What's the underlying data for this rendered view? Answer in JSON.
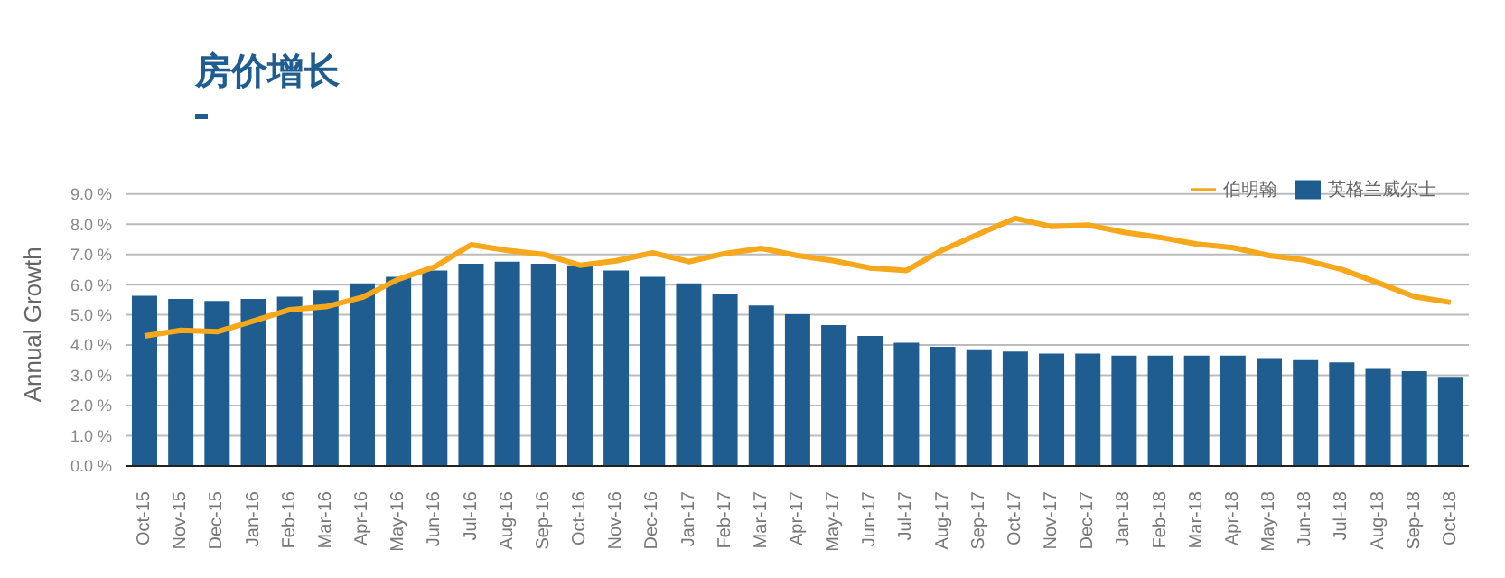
{
  "chart_data": {
    "type": "bar",
    "title": "房价增长",
    "ylabel": "Annual Growth",
    "categories": [
      "Oct-15",
      "Nov-15",
      "Dec-15",
      "Jan-16",
      "Feb-16",
      "Mar-16",
      "Apr-16",
      "May-16",
      "Jun-16",
      "Jul-16",
      "Aug-16",
      "Sep-16",
      "Oct-16",
      "Nov-16",
      "Dec-16",
      "Jan-17",
      "Feb-17",
      "Mar-17",
      "Apr-17",
      "May-17",
      "Jun-17",
      "Jul-17",
      "Aug-17",
      "Sep-17",
      "Oct-17",
      "Nov-17",
      "Dec-17",
      "Jan-18",
      "Feb-18",
      "Mar-18",
      "Apr-18",
      "May-18",
      "Jun-18",
      "Jul-18",
      "Aug-18",
      "Sep-18",
      "Oct-18"
    ],
    "series": [
      {
        "name": "英格兰威尔士",
        "color": "#1f5c8f",
        "values": [
          5.63,
          5.53,
          5.46,
          5.53,
          5.6,
          5.82,
          6.04,
          6.26,
          6.47,
          6.69,
          6.76,
          6.69,
          6.64,
          6.47,
          6.26,
          6.04,
          5.68,
          5.31,
          5.02,
          4.66,
          4.3,
          4.08,
          3.94,
          3.86,
          3.79,
          3.72,
          3.72,
          3.65,
          3.65,
          3.65,
          3.65,
          3.57,
          3.5,
          3.43,
          3.21,
          3.14,
          2.95
        ]
      },
      {
        "name": "伯明翰",
        "type": "line",
        "color": "#f5a81c",
        "values": [
          4.3,
          4.49,
          4.44,
          4.8,
          5.17,
          5.27,
          5.58,
          6.18,
          6.59,
          7.32,
          7.13,
          7.0,
          6.64,
          6.79,
          7.05,
          6.76,
          7.03,
          7.2,
          6.96,
          6.79,
          6.55,
          6.47,
          7.15,
          7.68,
          8.19,
          7.92,
          7.97,
          7.73,
          7.56,
          7.34,
          7.22,
          6.96,
          6.81,
          6.5,
          6.06,
          5.6,
          5.41
        ]
      }
    ],
    "ylim": [
      0,
      9
    ],
    "yticks": [
      {
        "value": 0,
        "label": "0.0 %"
      },
      {
        "value": 1,
        "label": "1.0 %"
      },
      {
        "value": 2,
        "label": "2.0 %"
      },
      {
        "value": 3,
        "label": "3.0 %"
      },
      {
        "value": 4,
        "label": "4.0 %"
      },
      {
        "value": 5,
        "label": "5.0 %"
      },
      {
        "value": 6,
        "label": "6.0 %"
      },
      {
        "value": 7,
        "label": "7.0 %"
      },
      {
        "value": 8,
        "label": "8.0 %"
      },
      {
        "value": 9,
        "label": "9.0 %"
      }
    ],
    "grid": "y",
    "legend": "top right",
    "marker": "none"
  }
}
